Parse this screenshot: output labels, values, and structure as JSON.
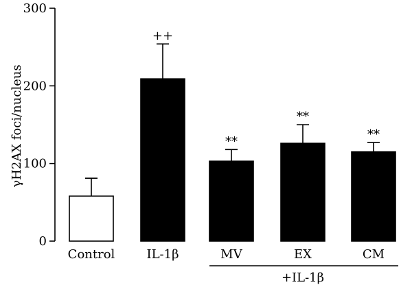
{
  "chart_data": {
    "type": "bar",
    "categories": [
      "Control",
      "IL-1β",
      "MV",
      "EX",
      "CM"
    ],
    "values": [
      58,
      209,
      103,
      126,
      115
    ],
    "errors": [
      23,
      45,
      15,
      24,
      12
    ],
    "annotations": [
      "",
      "++",
      "**",
      "**",
      "**"
    ],
    "bar_colors": [
      "#ffffff",
      "#000000",
      "#000000",
      "#000000",
      "#000000"
    ],
    "ylabel": "γH2AX foci/nucleus",
    "ylim": [
      0,
      300
    ],
    "yticks": [
      0,
      100,
      200,
      300
    ],
    "group_label": "+IL-1β",
    "grid": false,
    "legend": "none"
  }
}
